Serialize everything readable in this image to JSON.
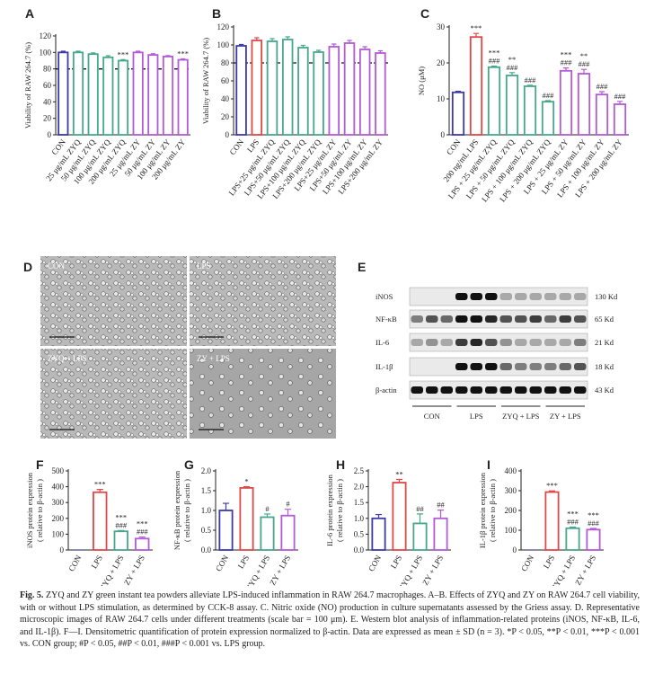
{
  "chart_data": [
    {
      "type": "bar",
      "panel": "A",
      "y_label": [
        "Viability of RAW 264.7 (%)"
      ],
      "categories": [
        "CON",
        "25 μg/mL ZYQ",
        "50 μg/mL ZYQ",
        "100 μg/mL ZYQ",
        "200 μg/mL ZYQ",
        "25 μg/mL ZY",
        "50 μg/mL ZY",
        "100 μg/mL ZY",
        "200 μg/mL ZY"
      ],
      "values": [
        100,
        100,
        98,
        94,
        90,
        100,
        97,
        95,
        91
      ],
      "errors": [
        1.5,
        1.5,
        1.5,
        2,
        1.2,
        1.5,
        1.5,
        1.2,
        1.2
      ],
      "colors": [
        "#3a3aa8",
        "#45a88a",
        "#45a88a",
        "#45a88a",
        "#45a88a",
        "#b35ad6",
        "#b35ad6",
        "#b35ad6",
        "#b35ad6"
      ],
      "annotations": [
        [],
        [],
        [],
        [],
        [
          "***"
        ],
        [],
        [],
        [],
        [
          "***"
        ]
      ],
      "reference_line": 80,
      "ylim": [
        0,
        120
      ],
      "yticks": [
        0,
        20,
        40,
        60,
        80,
        100,
        120
      ]
    },
    {
      "type": "bar",
      "panel": "B",
      "y_label": [
        "Viability of RAW 264.7 (%)"
      ],
      "categories": [
        "CON",
        "LPS",
        "LPS+25 μg/mL ZYQ",
        "LPS+50 μg/mL ZYQ",
        "LPS+100 μg/mL ZYQ",
        "LPS+200 μg/mL ZYQ",
        "LPS+25 μg/mL ZY",
        "LPS+50 μg/mL ZY",
        "LPS+100 μg/mL ZY",
        "LPS+200 μg/mL ZY"
      ],
      "values": [
        99,
        105,
        104,
        106,
        97,
        92,
        98,
        102,
        95,
        91
      ],
      "errors": [
        1.5,
        3,
        3,
        3,
        2.5,
        2,
        3,
        3,
        3,
        2.5
      ],
      "colors": [
        "#3a3aa8",
        "#e04848",
        "#45a88a",
        "#45a88a",
        "#45a88a",
        "#45a88a",
        "#b35ad6",
        "#b35ad6",
        "#b35ad6",
        "#b35ad6"
      ],
      "annotations": [
        [],
        [],
        [],
        [],
        [],
        [],
        [],
        [],
        [],
        []
      ],
      "reference_line": 80,
      "ylim": [
        0,
        120
      ],
      "yticks": [
        0,
        20,
        40,
        60,
        80,
        100,
        120
      ]
    },
    {
      "type": "bar",
      "panel": "C",
      "y_label": [
        "NO (μM)"
      ],
      "categories": [
        "CON",
        "200 ng/mL LPS",
        "LPS + 25 μg/mL ZYQ",
        "LPS + 50 μg/mL ZYQ",
        "LPS + 100 μg/mL ZYQ",
        "LPS + 200 μg/mL ZYQ",
        "LPS + 25 μg/mL ZY",
        "LPS + 50 μg/mL ZY",
        "LPS + 100 μg/mL ZY",
        "LPS + 200 μg/mL ZY"
      ],
      "values": [
        11.8,
        27.2,
        18.8,
        16.5,
        13.5,
        9.2,
        17.8,
        17,
        11.2,
        8.5
      ],
      "errors": [
        0.3,
        1,
        0.3,
        0.8,
        0.3,
        0.3,
        0.8,
        1.2,
        0.8,
        0.8
      ],
      "colors": [
        "#3a3aa8",
        "#e04848",
        "#45a88a",
        "#45a88a",
        "#45a88a",
        "#45a88a",
        "#b35ad6",
        "#b35ad6",
        "#b35ad6",
        "#b35ad6"
      ],
      "annotations": [
        [],
        [
          "***"
        ],
        [
          "***",
          "###"
        ],
        [
          "**",
          "###"
        ],
        [
          "###"
        ],
        [
          "###"
        ],
        [
          "***",
          "###"
        ],
        [
          "**",
          "###"
        ],
        [
          "###"
        ],
        [
          "###"
        ]
      ],
      "ylim": [
        0,
        30
      ],
      "yticks": [
        0,
        10,
        20,
        30
      ]
    },
    {
      "type": "bar",
      "panel": "F",
      "y_label": [
        "iNOS protein expression",
        "( relative to β-actin )"
      ],
      "categories": [
        "CON",
        "LPS",
        "ZYQ + LPS",
        "ZY + LPS"
      ],
      "values": [
        0,
        365,
        118,
        72
      ],
      "errors": [
        0,
        18,
        5,
        10
      ],
      "colors": [
        "#3a3aa8",
        "#e04848",
        "#45a88a",
        "#b35ad6"
      ],
      "annotations": [
        [],
        [
          "***"
        ],
        [
          "***",
          "###"
        ],
        [
          "***",
          "###"
        ]
      ],
      "ylim": [
        0,
        500
      ],
      "yticks": [
        0,
        100,
        200,
        300,
        400,
        500
      ]
    },
    {
      "type": "bar",
      "panel": "G",
      "y_label": [
        "NF-κB protein expression",
        "( relative to β-actin )"
      ],
      "categories": [
        "CON",
        "LPS",
        "ZYQ + LPS",
        "ZY + LPS"
      ],
      "values": [
        1.0,
        1.57,
        0.83,
        0.87
      ],
      "errors": [
        0.18,
        0.03,
        0.08,
        0.16
      ],
      "colors": [
        "#3a3aa8",
        "#e04848",
        "#45a88a",
        "#b35ad6"
      ],
      "annotations": [
        [],
        [
          "*"
        ],
        [
          "#"
        ],
        [
          "#"
        ]
      ],
      "ylim": [
        0,
        2
      ],
      "yticks": [
        {
          "value": 0,
          "label": "0.0"
        },
        0.5,
        {
          "value": 1,
          "label": "1.0"
        },
        1.5,
        {
          "value": 2,
          "label": "2.0"
        }
      ]
    },
    {
      "type": "bar",
      "panel": "H",
      "y_label": [
        "IL-6 protein expression",
        "( relative to β-actin )"
      ],
      "categories": [
        "CON",
        "LPS",
        "ZYQ + LPS",
        "ZY + LPS"
      ],
      "values": [
        1.0,
        2.13,
        0.84,
        1.0
      ],
      "errors": [
        0.12,
        0.1,
        0.3,
        0.26
      ],
      "colors": [
        "#3a3aa8",
        "#e04848",
        "#45a88a",
        "#b35ad6"
      ],
      "annotations": [
        [],
        [
          "**"
        ],
        [
          "##"
        ],
        [
          "##"
        ]
      ],
      "ylim": [
        0,
        2.5
      ],
      "yticks": [
        {
          "value": 0,
          "label": "0.0"
        },
        0.5,
        {
          "value": 1,
          "label": "1.0"
        },
        1.5,
        {
          "value": 2,
          "label": "2.0"
        },
        2.5
      ]
    },
    {
      "type": "bar",
      "panel": "I",
      "y_label": [
        "IL-1β protein expression",
        "( relative to β-actin )"
      ],
      "categories": [
        "CON",
        "LPS",
        "ZYQ + LPS",
        "ZY + LPS"
      ],
      "values": [
        0,
        293,
        110,
        103
      ],
      "errors": [
        0,
        6,
        6,
        6
      ],
      "colors": [
        "#3a3aa8",
        "#e04848",
        "#45a88a",
        "#b35ad6"
      ],
      "annotations": [
        [],
        [
          "***"
        ],
        [
          "***",
          "###"
        ],
        [
          "***",
          "###"
        ]
      ],
      "ylim": [
        0,
        400
      ],
      "yticks": [
        0,
        100,
        200,
        300,
        400
      ]
    }
  ],
  "microscopy": {
    "panel": "D",
    "labels": [
      "CON",
      "LPS",
      "ZYQ + LPS",
      "ZY + LPS"
    ]
  },
  "western_blot": {
    "panel": "E",
    "proteins": [
      "iNOS",
      "NF-κB",
      "IL-6",
      "IL-1β",
      "β-actin"
    ],
    "sizes": [
      "130 Kd",
      "65 Kd",
      "21 Kd",
      "18 Kd",
      "43 Kd"
    ],
    "groups": [
      "CON",
      "LPS",
      "ZYQ + LPS",
      "ZY + LPS"
    ]
  },
  "caption": {
    "label": "Fig. 5.",
    "text": "ZYQ and ZY green instant tea powders alleviate LPS-induced inflammation in RAW 264.7 macrophages. A–B. Effects of ZYQ and ZY on RAW 264.7 cell viability, with or without LPS stimulation, as determined by CCK-8 assay. C. Nitric oxide (NO) production in culture supernatants assessed by the Griess assay. D. Representative microscopic images of RAW 264.7 cells under different treatments (scale bar = 100 μm). E. Western blot analysis of inflammation-related proteins (iNOS, NF-κB, IL-6, and IL-1β). F—I. Densitometric quantification of protein expression normalized to β-actin. Data are expressed as mean ± SD (n = 3). *P < 0.05, **P < 0.01, ***P < 0.001 vs. CON group; #P < 0.05, ##P < 0.01, ###P < 0.001 vs. LPS group."
  }
}
